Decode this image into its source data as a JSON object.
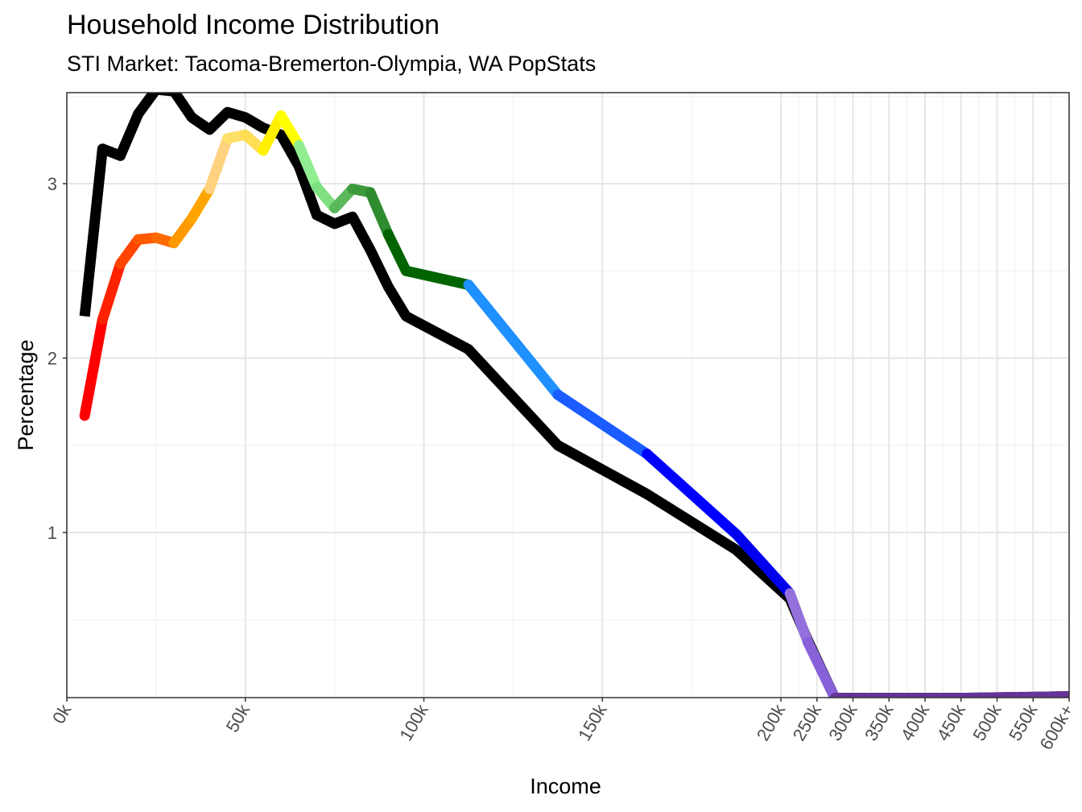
{
  "title": "Household Income Distribution",
  "subtitle": "STI Market: Tacoma-Bremerton-Olympia, WA PopStats",
  "chart_data": {
    "type": "line",
    "title": "Household Income Distribution",
    "subtitle": "STI Market: Tacoma-Bremerton-Olympia, WA PopStats",
    "xlabel": "Income",
    "ylabel": "Percentage",
    "x_scale": "piecewise: linear 0k-200k, compressed 200k-600k+",
    "x_ticks": [
      "0k",
      "50k",
      "100k",
      "150k",
      "200k",
      "250k",
      "300k",
      "350k",
      "400k",
      "450k",
      "500k",
      "550k",
      "600k+"
    ],
    "y_ticks": [
      "1",
      "2",
      "3"
    ],
    "ylim": [
      0.05,
      3.52
    ],
    "grid": true,
    "legend": "none",
    "series": [
      {
        "role": "black reference line",
        "color": "#000000",
        "points": [
          [
            5,
            2.24
          ],
          [
            10,
            3.2
          ],
          [
            15,
            3.16
          ],
          [
            20,
            3.4
          ],
          [
            25,
            3.54
          ],
          [
            30,
            3.53
          ],
          [
            35,
            3.38
          ],
          [
            40,
            3.31
          ],
          [
            45,
            3.41
          ],
          [
            50,
            3.38
          ],
          [
            55,
            3.32
          ],
          [
            60,
            3.28
          ],
          [
            65,
            3.1
          ],
          [
            70,
            2.82
          ],
          [
            75,
            2.77
          ],
          [
            80,
            2.81
          ],
          [
            85,
            2.62
          ],
          [
            90,
            2.41
          ],
          [
            95,
            2.24
          ],
          [
            112.5,
            2.05
          ],
          [
            137.5,
            1.5
          ],
          [
            162.5,
            1.22
          ],
          [
            187.5,
            0.9
          ],
          [
            212.5,
            0.62
          ],
          [
            237.5,
            0.38
          ],
          [
            275,
            0.05
          ],
          [
            350,
            0.05
          ],
          [
            450,
            0.05
          ],
          [
            600,
            0.06
          ]
        ]
      },
      {
        "role": "colored distribution line",
        "points": [
          [
            5,
            1.67
          ],
          [
            10,
            2.22
          ],
          [
            15,
            2.54
          ],
          [
            20,
            2.68
          ],
          [
            25,
            2.69
          ],
          [
            30,
            2.66
          ],
          [
            35,
            2.8
          ],
          [
            40,
            2.97
          ],
          [
            45,
            3.26
          ],
          [
            50,
            3.28
          ],
          [
            55,
            3.19
          ],
          [
            60,
            3.39
          ],
          [
            65,
            3.22
          ],
          [
            70,
            2.98
          ],
          [
            75,
            2.86
          ],
          [
            80,
            2.97
          ],
          [
            85,
            2.95
          ],
          [
            90,
            2.71
          ],
          [
            95,
            2.5
          ],
          [
            112.5,
            2.42
          ],
          [
            137.5,
            1.79
          ],
          [
            162.5,
            1.45
          ],
          [
            187.5,
            0.99
          ],
          [
            212.5,
            0.65
          ],
          [
            237.5,
            0.37
          ],
          [
            275,
            0.05
          ],
          [
            350,
            0.05
          ],
          [
            450,
            0.05
          ],
          [
            600,
            0.06
          ]
        ],
        "segment_colors": [
          "#ff0000",
          "#ff2200",
          "#ff4500",
          "#ff5a00",
          "#ff6a00",
          "#ff9900",
          "#ffa500",
          "#ffd27f",
          "#ffe066",
          "#ffdd55",
          "#fff000",
          "#ffff00",
          "#90ee90",
          "#7ee080",
          "#5cb85c",
          "#3c9a3c",
          "#2e8b2e",
          "#006400",
          "#006400",
          "#1e90ff",
          "#1a5cff",
          "#0000ff",
          "#0000ee",
          "#9370db",
          "#8860d8",
          "#663399",
          "#663399",
          "#663399"
        ]
      }
    ]
  }
}
